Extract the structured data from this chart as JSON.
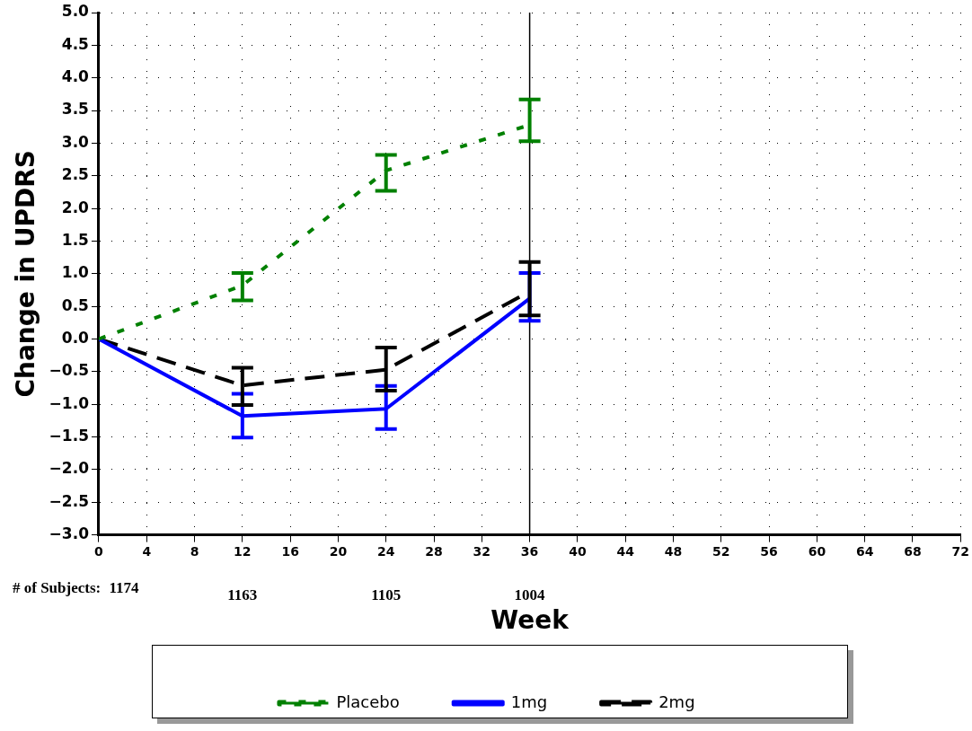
{
  "chart_data": {
    "type": "line",
    "xlabel": "Week",
    "ylabel": "Change in UPDRS",
    "x": [
      0,
      12,
      24,
      36
    ],
    "series": [
      {
        "name": "Placebo",
        "color": "#008000",
        "line_style": "dotted",
        "values": [
          0,
          0.82,
          2.58,
          3.28
        ],
        "errors": [
          null,
          [
            0.59,
            1.01
          ],
          [
            2.27,
            2.82
          ],
          [
            3.03,
            3.67
          ]
        ]
      },
      {
        "name": "1mg",
        "color": "#0000ff",
        "line_style": "solid",
        "values": [
          0,
          -1.18,
          -1.07,
          0.62
        ],
        "errors": [
          null,
          [
            -1.51,
            -0.84
          ],
          [
            -1.38,
            -0.72
          ],
          [
            0.28,
            1.01
          ]
        ]
      },
      {
        "name": "2mg",
        "color": "#000000",
        "line_style": "dashed",
        "values": [
          0,
          -0.71,
          -0.47,
          0.73
        ],
        "errors": [
          null,
          [
            -1.01,
            -0.44
          ],
          [
            -0.79,
            -0.13
          ],
          [
            0.36,
            1.18
          ]
        ]
      }
    ],
    "xlim": [
      0,
      72
    ],
    "xticks": [
      0,
      4,
      8,
      12,
      16,
      20,
      24,
      28,
      32,
      36,
      40,
      44,
      48,
      52,
      56,
      60,
      64,
      68,
      72
    ],
    "ylim": [
      -3,
      5
    ],
    "yticks": [
      {
        "value": -3,
        "label": "−3.0"
      },
      {
        "value": -2.5,
        "label": "−2.5"
      },
      {
        "value": -2,
        "label": "−2.0"
      },
      {
        "value": -1.5,
        "label": "−1.5"
      },
      {
        "value": -1,
        "label": "−1.0"
      },
      {
        "value": -0.5,
        "label": "−0.5"
      },
      {
        "value": 0,
        "label": "0.0"
      },
      {
        "value": 0.5,
        "label": "0.5"
      },
      {
        "value": 1,
        "label": "1.0"
      },
      {
        "value": 1.5,
        "label": "1.5"
      },
      {
        "value": 2,
        "label": "2.0"
      },
      {
        "value": 2.5,
        "label": "2.5"
      },
      {
        "value": 3,
        "label": "3.0"
      },
      {
        "value": 3.5,
        "label": "3.5"
      },
      {
        "value": 4,
        "label": "4.0"
      },
      {
        "value": 4.5,
        "label": "4.5"
      },
      {
        "value": 5,
        "label": "5.0"
      }
    ],
    "ref_lines": [
      {
        "axis": "x",
        "value": 36,
        "color": "#000000"
      }
    ],
    "annotations": [
      "# of Subjects:",
      "1174",
      "1163",
      "1105",
      "1004"
    ],
    "grid": true,
    "legend": "bottom",
    "marker": "none"
  }
}
